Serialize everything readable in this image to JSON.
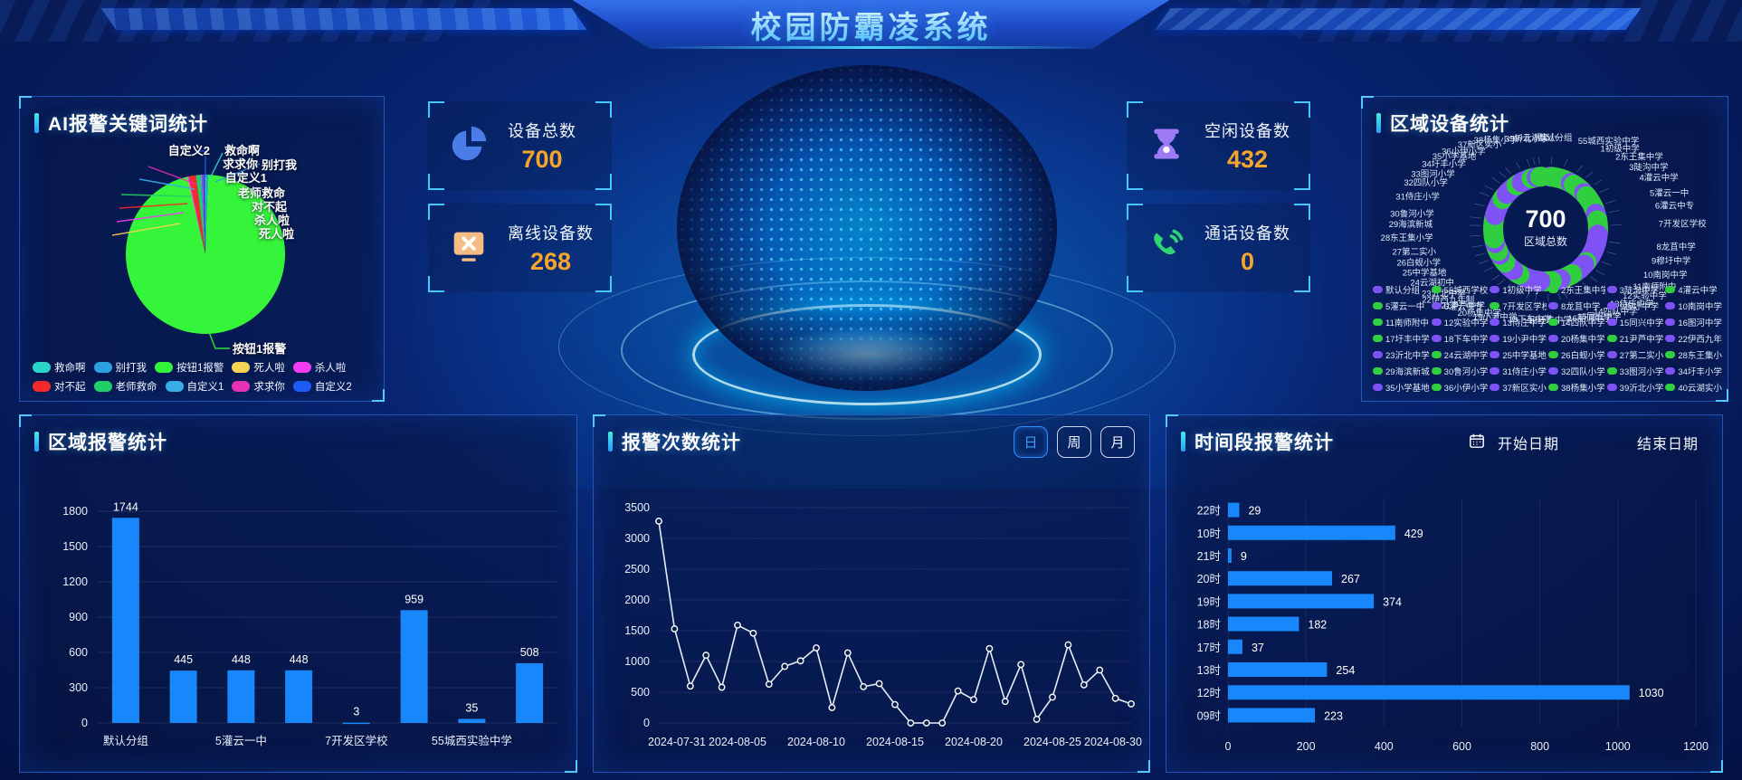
{
  "header": {
    "title": "校园防霸凌系统"
  },
  "stat_cards": [
    {
      "icon": "pie-chart-icon",
      "label": "设备总数",
      "value": "700"
    },
    {
      "icon": "offline-monitor-icon",
      "label": "离线设备数",
      "value": "268"
    },
    {
      "icon": "hourglass-icon",
      "label": "空闲设备数",
      "value": "432"
    },
    {
      "icon": "phone-icon",
      "label": "通话设备数",
      "value": "0"
    }
  ],
  "keyword_panel": {
    "title": "AI报警关键词统计",
    "callout_label": "按钮1报警",
    "chart_data": {
      "type": "pie",
      "note": "slice sizes estimated from pixels, percent",
      "slices": [
        {
          "label": "救命啊",
          "color": "#2ad4c8",
          "value": 0.25
        },
        {
          "label": "别打我",
          "color": "#2da0e2",
          "value": 0.25
        },
        {
          "label": "按钮1报警",
          "color": "#35f53a",
          "value": 95.75
        },
        {
          "label": "死人啦",
          "color": "#f7d354",
          "value": 0.15
        },
        {
          "label": "杀人啦",
          "color": "#f23cf2",
          "value": 0.3
        },
        {
          "label": "对不起",
          "color": "#f42a2a",
          "value": 1.4
        },
        {
          "label": "老师救命",
          "color": "#21cf68",
          "value": 0.9
        },
        {
          "label": "自定义1",
          "color": "#35aee8",
          "value": 0.25
        },
        {
          "label": "求求你",
          "color": "#e832b4",
          "value": 0.3
        },
        {
          "label": "自定义2",
          "color": "#1d5cf5",
          "value": 0.45
        }
      ]
    }
  },
  "region_device_panel": {
    "title": "区域设备统计",
    "center_value": "700",
    "center_label": "区域总数",
    "chart_data": {
      "type": "pie",
      "donut": true,
      "total": 700,
      "values_estimated": true,
      "segments": [
        {
          "label": "默认分组",
          "color": "#7e52f4",
          "value": 6
        },
        {
          "label": "55城西学校",
          "ring_label": "55城西实验中学",
          "color": "#2fcf3f",
          "value": 40
        },
        {
          "label": "1初级中学",
          "color": "#7e52f4",
          "value": 7
        },
        {
          "label": "2东王集中学",
          "color": "#2fcf3f",
          "value": 28
        },
        {
          "label": "3陡沟中学",
          "color": "#7e52f4",
          "value": 8
        },
        {
          "label": "4灌云中学",
          "color": "#2fcf3f",
          "value": 24
        },
        {
          "label": "5灌云一中",
          "color": "#2fcf3f",
          "value": 18
        },
        {
          "label": "6灌云中专",
          "color": "#7e52f4",
          "value": 14
        },
        {
          "label": "7开发区学校",
          "color": "#2fcf3f",
          "value": 30
        },
        {
          "label": "8龙苴中学",
          "color": "#7e52f4",
          "value": 26
        },
        {
          "label": "9穆圩中学",
          "color": "#7e52f4",
          "value": 9
        },
        {
          "label": "10南岗中学",
          "color": "#7e52f4",
          "value": 28
        },
        {
          "label": "11南师附中",
          "color": "#2fcf3f",
          "value": 7
        },
        {
          "label": "12实验中学",
          "color": "#7e52f4",
          "value": 22
        },
        {
          "label": "13侍庄中学",
          "color": "#7e52f4",
          "value": 10
        },
        {
          "label": "14四队中学",
          "color": "#2fcf3f",
          "value": 26
        },
        {
          "label": "15同兴中学",
          "color": "#7e52f4",
          "value": 8
        },
        {
          "label": "16图河中学",
          "color": "#7e52f4",
          "value": 11
        },
        {
          "label": "17圩丰中学",
          "color": "#2fcf3f",
          "value": 24
        },
        {
          "label": "18下车中学",
          "color": "#7e52f4",
          "value": 14
        },
        {
          "label": "19小尹中学",
          "color": "#7e52f4",
          "value": 12
        },
        {
          "label": "20杨集中学",
          "color": "#7e52f4",
          "value": 20
        },
        {
          "label": "21尹芦中学",
          "color": "#2fcf3f",
          "value": 16
        },
        {
          "label": "22伊西九年制",
          "color": "#7e52f4",
          "value": 9
        },
        {
          "label": "23沂北中学",
          "color": "#7e52f4",
          "value": 14
        },
        {
          "label": "24云湖中学",
          "ring_label": "24云湖初中",
          "color": "#2fcf3f",
          "value": 20
        },
        {
          "label": "25中学基地",
          "color": "#7e52f4",
          "value": 8
        },
        {
          "label": "26白蚬小学",
          "color": "#2fcf3f",
          "value": 18
        },
        {
          "label": "27第二实小",
          "color": "#7e52f4",
          "value": 10
        },
        {
          "label": "28东王集小学",
          "color": "#2fcf3f",
          "value": 24
        },
        {
          "label": "29海滨新城",
          "color": "#2fcf3f",
          "value": 9
        },
        {
          "label": "30鲁河小学",
          "color": "#2fcf3f",
          "value": 16
        },
        {
          "label": "31侍庄小学",
          "color": "#7e52f4",
          "value": 26
        },
        {
          "label": "32四队小学",
          "color": "#7e52f4",
          "value": 11
        },
        {
          "label": "33图河小学",
          "color": "#2fcf3f",
          "value": 14
        },
        {
          "label": "34圩丰小学",
          "color": "#7e52f4",
          "value": 18
        },
        {
          "label": "35小学基地",
          "color": "#7e52f4",
          "value": 9
        },
        {
          "label": "36小伊小学",
          "color": "#2fcf3f",
          "value": 13
        },
        {
          "label": "37新区实小",
          "color": "#7e52f4",
          "value": 22
        },
        {
          "label": "38杨集小学",
          "color": "#2fcf3f",
          "value": 11
        },
        {
          "label": "39沂北小学",
          "color": "#7e52f4",
          "value": 7
        },
        {
          "label": "40云湖实小",
          "color": "#2fcf3f",
          "value": 9
        }
      ]
    }
  },
  "region_alarm_panel": {
    "title": "区域报警统计",
    "chart_data": {
      "type": "bar",
      "bar_color": "#1787fb",
      "values": [
        1744,
        445,
        448,
        448,
        3,
        959,
        35,
        508
      ],
      "x_tick_labels": [
        {
          "index": 0,
          "text": "默认分组"
        },
        {
          "index": 2,
          "text": "5灌云一中"
        },
        {
          "index": 4,
          "text": "7开发区学校"
        },
        {
          "index": 6,
          "text": "55城西实验中学"
        }
      ],
      "y_ticks": [
        0,
        300,
        600,
        900,
        1200,
        1500,
        1800
      ],
      "ylim": [
        0,
        1800
      ]
    }
  },
  "alarm_count_panel": {
    "title": "报警次数统计",
    "range_buttons": [
      {
        "label": "日",
        "active": true
      },
      {
        "label": "周",
        "active": false
      },
      {
        "label": "月",
        "active": false
      }
    ],
    "chart_data": {
      "type": "line",
      "line_color": "#e6edf8",
      "x_tick_labels": [
        "2024-07-31",
        "2024-08-05",
        "2024-08-10",
        "2024-08-15",
        "2024-08-20",
        "2024-08-25",
        "2024-08-30"
      ],
      "values": [
        3280,
        1530,
        600,
        1100,
        580,
        1590,
        1460,
        630,
        920,
        1010,
        1220,
        250,
        1140,
        590,
        640,
        300,
        0,
        0,
        0,
        520,
        380,
        1210,
        350,
        950,
        60,
        420,
        1270,
        620,
        860,
        400,
        310
      ],
      "y_ticks": [
        0,
        500,
        1000,
        1500,
        2000,
        2500,
        3000,
        3500
      ],
      "ylim": [
        0,
        3500
      ]
    }
  },
  "time_alarm_panel": {
    "title": "时间段报警统计",
    "start_date_label": "开始日期",
    "end_date_label": "结束日期",
    "chart_data": {
      "type": "bar",
      "orientation": "horizontal",
      "bar_color": "#1787fb",
      "categories": [
        "22时",
        "10时",
        "21时",
        "20时",
        "19时",
        "18时",
        "17时",
        "13时",
        "12时",
        "09时"
      ],
      "values": [
        29,
        429,
        9,
        267,
        374,
        182,
        37,
        254,
        1030,
        223
      ],
      "x_ticks": [
        0,
        200,
        400,
        600,
        800,
        1000,
        1200
      ],
      "xlim": [
        0,
        1200
      ]
    }
  }
}
